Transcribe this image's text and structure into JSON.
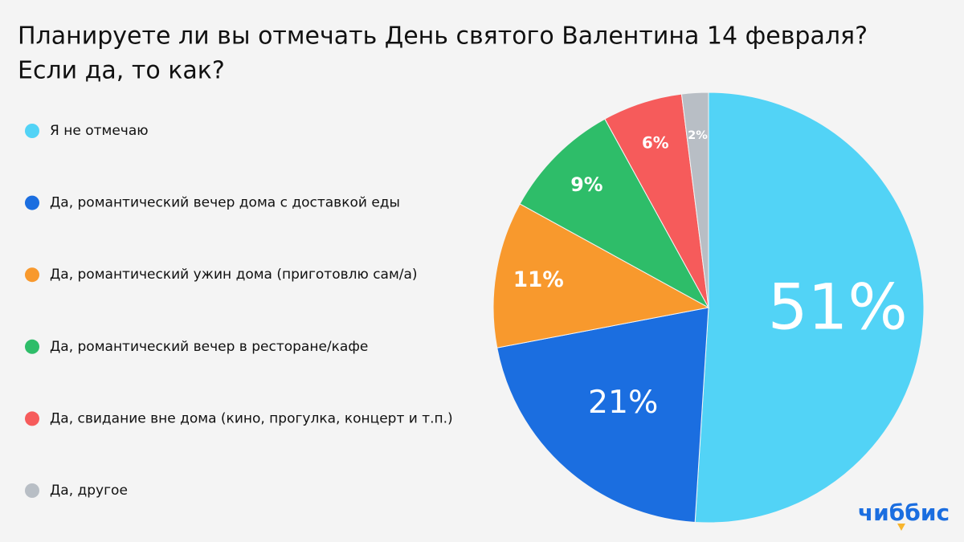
{
  "chart_data": {
    "type": "pie",
    "title": "Планируете ли вы отмечать День святого Валентина 14 февраля?",
    "subtitle": "Если да, то как?",
    "categories": [
      "Я не отмечаю",
      "Да, романтический вечер дома с доставкой еды",
      "Да, романтический ужин дома (приготовлю сам/а)",
      "Да, романтический вечер в ресторане/кафе",
      "Да, свидание вне дома (кино, прогулка, концерт и т.п.)",
      "Да, другое"
    ],
    "values": [
      51,
      21,
      11,
      9,
      6,
      2
    ],
    "value_labels": [
      "51%",
      "21%",
      "11%",
      "9%",
      "6%",
      "2%"
    ],
    "colors": [
      "#52d3f6",
      "#1b6ee0",
      "#f8992d",
      "#2ebd69",
      "#f65b5b",
      "#b8bec5"
    ],
    "legend": "left"
  },
  "logo": "чиббис"
}
